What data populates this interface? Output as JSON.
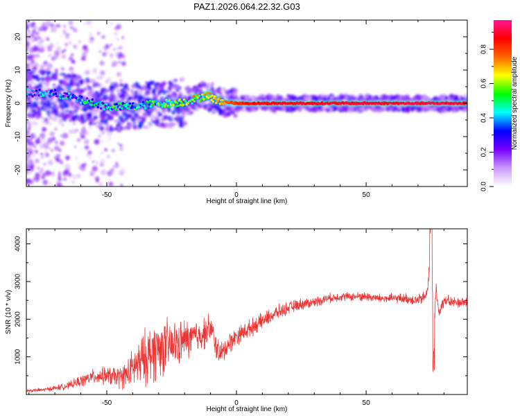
{
  "title": "PAZ1.2026.064.22.32.G03",
  "chart_data": [
    {
      "type": "heatmap",
      "xlabel": "Height of straight line (km)",
      "ylabel": "Frequency (Hz)",
      "xlim": [
        -81,
        89
      ],
      "ylim": [
        -25,
        25
      ],
      "xticks": [
        -50,
        0,
        50
      ],
      "yticks": [
        -20,
        -10,
        0,
        10,
        20
      ],
      "colorbar": {
        "label": "Normalized spectral amplitude",
        "range": [
          0,
          0.97
        ],
        "ticks": [
          0.0,
          0.2,
          0.4,
          0.6,
          0.8
        ],
        "colormap": [
          "#ffffff",
          "#cc99ff",
          "#7700ff",
          "#0000ff",
          "#00ffff",
          "#00ff00",
          "#ffff00",
          "#ff6600",
          "#ff0000",
          "#ff1493"
        ]
      },
      "ridge": {
        "heights_km": [
          -81,
          -70,
          -65,
          -60,
          -55,
          -50,
          -45,
          -40,
          -35,
          -30,
          -25,
          -20,
          -15,
          -12,
          -10,
          -8,
          -5,
          0,
          10,
          20,
          30,
          40,
          50,
          60,
          70,
          80,
          89
        ],
        "frequency_hz": [
          3,
          3,
          2,
          1,
          0,
          -1,
          -1,
          -1,
          -0.5,
          0,
          0,
          0.5,
          1.5,
          2.5,
          2,
          1,
          0.5,
          0,
          0,
          0,
          0,
          0,
          0,
          0,
          0,
          0,
          0
        ],
        "amplitude": [
          0.3,
          0.32,
          0.35,
          0.38,
          0.4,
          0.42,
          0.43,
          0.45,
          0.48,
          0.52,
          0.55,
          0.6,
          0.62,
          0.6,
          0.65,
          0.7,
          0.75,
          0.85,
          0.9,
          0.9,
          0.92,
          0.92,
          0.93,
          0.93,
          0.94,
          0.94,
          0.94
        ]
      }
    },
    {
      "type": "line",
      "xlabel": "Height of straight line (km)",
      "ylabel": "SNR (10 * v/v)",
      "xlim": [
        -81,
        89
      ],
      "ylim": [
        0,
        4400
      ],
      "xticks": [
        -50,
        0,
        50
      ],
      "yticks": [
        1000,
        2000,
        3000,
        4000
      ],
      "color": "#ee3333",
      "series": [
        {
          "x": [
            -81,
            -75,
            -70,
            -65,
            -60,
            -55,
            -50,
            -45,
            -42,
            -40,
            -37,
            -35,
            -32,
            -30,
            -28,
            -25,
            -22,
            -20,
            -17,
            -15,
            -12,
            -10,
            -8,
            -6,
            -5,
            -3,
            0,
            5,
            10,
            15,
            20,
            25,
            30,
            35,
            40,
            45,
            50,
            55,
            60,
            65,
            70,
            73,
            74,
            75,
            76,
            77,
            78,
            80,
            83,
            86,
            89
          ],
          "y": [
            100,
            120,
            170,
            230,
            360,
            480,
            500,
            450,
            550,
            700,
            850,
            1000,
            1150,
            1250,
            1250,
            1300,
            1350,
            1450,
            1500,
            1550,
            1650,
            1800,
            1300,
            1050,
            1150,
            1350,
            1550,
            1750,
            1950,
            2150,
            2300,
            2400,
            2450,
            2550,
            2600,
            2600,
            2600,
            2550,
            2550,
            2550,
            2500,
            2600,
            3000,
            4000,
            1500,
            2800,
            2200,
            2500,
            2450,
            2450,
            2450
          ],
          "noise": [
            50,
            60,
            80,
            110,
            180,
            240,
            280,
            360,
            450,
            600,
            800,
            900,
            1000,
            950,
            900,
            800,
            700,
            650,
            600,
            550,
            500,
            450,
            420,
            400,
            380,
            350,
            300,
            280,
            250,
            230,
            200,
            180,
            160,
            150,
            140,
            140,
            150,
            150,
            150,
            160,
            180,
            200,
            250,
            300,
            300,
            250,
            220,
            200,
            180,
            180,
            180
          ]
        }
      ]
    }
  ]
}
